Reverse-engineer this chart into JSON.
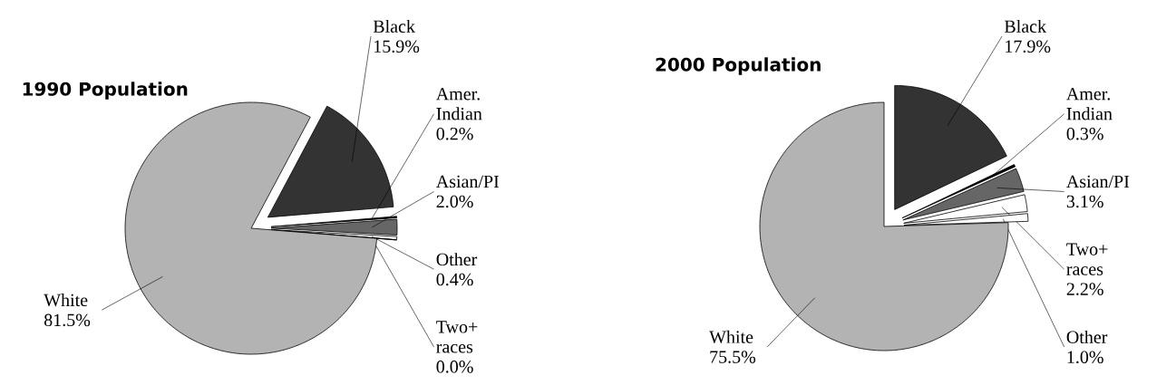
{
  "chart_data": [
    {
      "type": "pie",
      "title": "1990 Population",
      "categories": [
        "Black",
        "Amer. Indian",
        "Asian/PI",
        "Other",
        "Two+ races",
        "White"
      ],
      "values": [
        15.9,
        0.2,
        2.0,
        0.4,
        0.0,
        81.5
      ],
      "colors": [
        "#333333",
        "#000000",
        "#666666",
        "#ffffff",
        "#ffffff",
        "#b3b3b3"
      ],
      "value_labels": [
        "15.9%",
        "0.2%",
        "2.0%",
        "0.4%",
        "0.0%",
        "81.5%"
      ]
    },
    {
      "type": "pie",
      "title": "2000 Population",
      "categories": [
        "Black",
        "Amer. Indian",
        "Asian/PI",
        "Two+ races",
        "Other",
        "White"
      ],
      "values": [
        17.9,
        0.3,
        3.1,
        2.2,
        1.0,
        75.5
      ],
      "colors": [
        "#333333",
        "#000000",
        "#666666",
        "#ffffff",
        "#ffffff",
        "#b3b3b3"
      ],
      "value_labels": [
        "17.9%",
        "0.3%",
        "3.1%",
        "2.2%",
        "1.0%",
        "75.5%"
      ]
    }
  ]
}
